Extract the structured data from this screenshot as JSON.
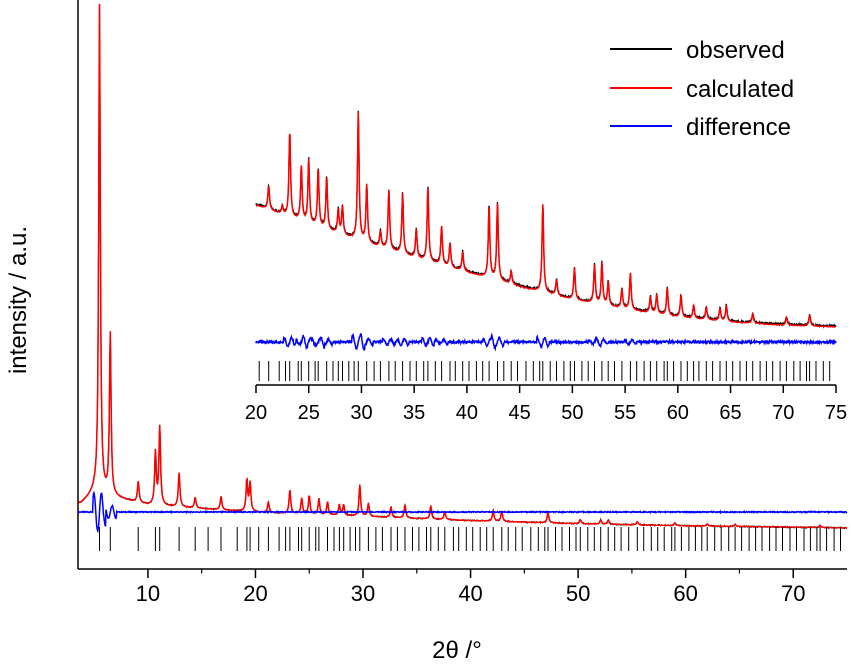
{
  "chart_data": [
    {
      "type": "line",
      "panel": "main",
      "xlabel": "2θ /°",
      "ylabel": "intensity / a.u.",
      "xlim": [
        3.5,
        75
      ],
      "x_ticks": [
        10,
        20,
        30,
        40,
        50,
        60,
        70
      ],
      "y_ticks_labeled": false,
      "legend_position": "top-right",
      "series": [
        {
          "name": "observed",
          "color": "#000000"
        },
        {
          "name": "calculated",
          "color": "#ff0000"
        },
        {
          "name": "difference",
          "color": "#0000ff"
        }
      ],
      "profile": {
        "background": [
          [
            3.8,
            0.055
          ],
          [
            5.0,
            0.075
          ],
          [
            10,
            0.052
          ],
          [
            20,
            0.038
          ],
          [
            30,
            0.03
          ],
          [
            40,
            0.022
          ],
          [
            50,
            0.016
          ],
          [
            60,
            0.012
          ],
          [
            75,
            0.008
          ]
        ],
        "peaks": [
          [
            5.5,
            0.94
          ],
          [
            6.5,
            0.31
          ],
          [
            9.1,
            0.04
          ],
          [
            10.7,
            0.1
          ],
          [
            11.1,
            0.15
          ],
          [
            12.9,
            0.065
          ],
          [
            14.4,
            0.02
          ],
          [
            16.8,
            0.025
          ],
          [
            19.2,
            0.06
          ],
          [
            19.5,
            0.055
          ],
          [
            21.2,
            0.02
          ],
          [
            23.2,
            0.045
          ],
          [
            24.3,
            0.03
          ],
          [
            25.0,
            0.035
          ],
          [
            25.9,
            0.03
          ],
          [
            26.7,
            0.025
          ],
          [
            27.8,
            0.02
          ],
          [
            28.2,
            0.02
          ],
          [
            29.7,
            0.06
          ],
          [
            30.5,
            0.025
          ],
          [
            32.6,
            0.02
          ],
          [
            33.9,
            0.025
          ],
          [
            36.3,
            0.025
          ],
          [
            37.6,
            0.015
          ],
          [
            42.1,
            0.02
          ],
          [
            42.9,
            0.02
          ],
          [
            47.2,
            0.02
          ],
          [
            50.2,
            0.008
          ],
          [
            52.1,
            0.008
          ],
          [
            52.8,
            0.008
          ],
          [
            55.5,
            0.006
          ],
          [
            59.0,
            0.005
          ],
          [
            62.0,
            0.004
          ],
          [
            64.6,
            0.004
          ],
          [
            72.5,
            0.004
          ]
        ]
      },
      "reflection_ticks": [
        5.5,
        6.5,
        9.1,
        10.7,
        11.1,
        12.9,
        14.4,
        15.6,
        16.8,
        18.3,
        19.2,
        19.5,
        20.3,
        21.2,
        22.2,
        22.8,
        23.2,
        24.0,
        24.3,
        25.0,
        25.6,
        25.9,
        26.7,
        27.3,
        27.8,
        28.2,
        28.8,
        29.3,
        29.7,
        30.5,
        31.2,
        31.8,
        32.6,
        33.2,
        33.9,
        34.6,
        35.2,
        35.9,
        36.3,
        37.0,
        37.6,
        38.4,
        38.9,
        39.6,
        40.2,
        40.9,
        41.5,
        42.1,
        42.9,
        43.5,
        44.2,
        44.8,
        45.6,
        46.3,
        46.9,
        47.2,
        47.9,
        48.5,
        49.2,
        49.8,
        50.2,
        50.9,
        51.5,
        52.1,
        52.8,
        53.4,
        54.0,
        54.7,
        55.5,
        56.1,
        56.8,
        57.4,
        58.0,
        58.7,
        59.0,
        59.6,
        60.3,
        60.9,
        61.5,
        62.0,
        62.7,
        63.3,
        64.0,
        64.6,
        65.2,
        65.9,
        66.5,
        67.1,
        67.8,
        68.4,
        69.0,
        69.7,
        70.3,
        71.0,
        71.6,
        72.2,
        72.5,
        73.1,
        73.8,
        74.4
      ]
    },
    {
      "type": "line",
      "panel": "inset",
      "xlim": [
        20,
        75
      ],
      "x_ticks": [
        20,
        25,
        30,
        35,
        40,
        45,
        50,
        55,
        60,
        65,
        70,
        75
      ],
      "profile": {
        "background": [
          [
            20,
            0.78
          ],
          [
            25,
            0.66
          ],
          [
            30,
            0.55
          ],
          [
            35,
            0.45
          ],
          [
            40,
            0.36
          ],
          [
            45,
            0.27
          ],
          [
            50,
            0.19
          ],
          [
            55,
            0.13
          ],
          [
            60,
            0.08
          ],
          [
            65,
            0.05
          ],
          [
            70,
            0.03
          ],
          [
            75,
            0.02
          ]
        ],
        "peaks": [
          [
            21.2,
            0.15
          ],
          [
            22.5,
            0.05
          ],
          [
            23.2,
            0.53
          ],
          [
            24.3,
            0.34
          ],
          [
            25.0,
            0.4
          ],
          [
            25.9,
            0.36
          ],
          [
            26.7,
            0.33
          ],
          [
            27.8,
            0.15
          ],
          [
            28.2,
            0.18
          ],
          [
            29.7,
            0.8
          ],
          [
            30.5,
            0.36
          ],
          [
            31.8,
            0.1
          ],
          [
            32.6,
            0.37
          ],
          [
            33.9,
            0.38
          ],
          [
            35.2,
            0.18
          ],
          [
            36.3,
            0.46
          ],
          [
            37.6,
            0.24
          ],
          [
            38.4,
            0.15
          ],
          [
            39.6,
            0.12
          ],
          [
            42.1,
            0.45
          ],
          [
            42.9,
            0.48
          ],
          [
            44.2,
            0.08
          ],
          [
            47.2,
            0.55
          ],
          [
            48.5,
            0.1
          ],
          [
            50.2,
            0.2
          ],
          [
            52.1,
            0.24
          ],
          [
            52.8,
            0.26
          ],
          [
            53.4,
            0.15
          ],
          [
            54.7,
            0.12
          ],
          [
            55.5,
            0.23
          ],
          [
            57.4,
            0.1
          ],
          [
            58.0,
            0.12
          ],
          [
            59.0,
            0.17
          ],
          [
            60.3,
            0.14
          ],
          [
            61.5,
            0.08
          ],
          [
            62.7,
            0.08
          ],
          [
            64.0,
            0.08
          ],
          [
            64.6,
            0.1
          ],
          [
            67.1,
            0.06
          ],
          [
            70.3,
            0.05
          ],
          [
            72.5,
            0.07
          ]
        ]
      },
      "reflection_ticks": [
        20.3,
        21.2,
        22.2,
        22.8,
        23.2,
        24.0,
        24.3,
        25.0,
        25.6,
        25.9,
        26.7,
        27.3,
        27.8,
        28.2,
        28.8,
        29.3,
        29.7,
        30.5,
        31.2,
        31.8,
        32.6,
        33.2,
        33.9,
        34.6,
        35.2,
        35.9,
        36.3,
        37.0,
        37.6,
        38.4,
        38.9,
        39.6,
        40.2,
        40.9,
        41.5,
        42.1,
        42.9,
        43.5,
        44.2,
        44.8,
        45.6,
        46.3,
        46.9,
        47.2,
        47.9,
        48.5,
        49.2,
        49.8,
        50.2,
        50.9,
        51.5,
        52.1,
        52.8,
        53.4,
        54.0,
        54.7,
        55.5,
        56.1,
        56.8,
        57.4,
        58.0,
        58.7,
        59.0,
        59.6,
        60.3,
        60.9,
        61.5,
        62.0,
        62.7,
        63.3,
        64.0,
        64.6,
        65.2,
        65.9,
        66.5,
        67.1,
        67.8,
        68.4,
        69.0,
        69.7,
        70.3,
        71.0,
        71.6,
        72.2,
        72.5,
        73.1,
        73.8,
        74.4
      ]
    }
  ]
}
